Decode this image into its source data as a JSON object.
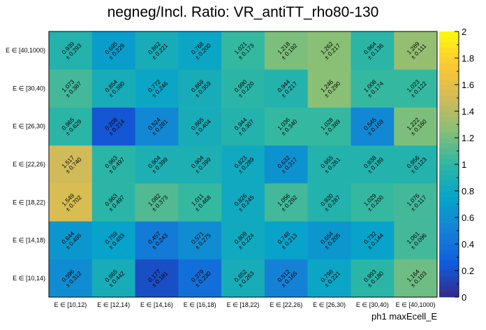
{
  "chart_data": {
    "type": "heatmap",
    "title": "negneg/Incl. Ratio: VR_antiTT_rho80-130",
    "xlabel": "ph1 maxEcell_E",
    "ylabel": "",
    "x_categories": [
      "E ∈ [10,12)",
      "E ∈ [12,14)",
      "E ∈ [14,16)",
      "E ∈ [16,18)",
      "E ∈ [18,22)",
      "E ∈ [22,26)",
      "E ∈ [26,30)",
      "E ∈ [30,40)",
      "E ∈ [40,1000)"
    ],
    "y_categories": [
      "E ∈ [10,14)",
      "E ∈ [14,18)",
      "E ∈ [18,22)",
      "E ∈ [22,26)",
      "E ∈ [26,30)",
      "E ∈ [30,40)",
      "E ∈ [40,1000)"
    ],
    "values": [
      [
        0.596,
        0.865,
        0.177,
        0.379,
        0.852,
        0.512,
        0.798,
        0.993,
        1.164
      ],
      [
        0.644,
        0.759,
        0.457,
        0.571,
        0.809,
        0.748,
        0.654,
        0.732,
        1.061
      ],
      [
        1.549,
        0.963,
        1.082,
        1.011,
        0.826,
        1.056,
        0.92,
        1.029,
        1.076
      ],
      [
        1.517,
        0.963,
        0.904,
        0.904,
        0.823,
        0.632,
        0.955,
        0.938,
        0.956
      ],
      [
        0.965,
        0.208,
        0.524,
        0.865,
        0.944,
        1.036,
        1.028,
        0.545,
        1.222
      ],
      [
        1.073,
        0.854,
        0.772,
        0.869,
        0.99,
        0.944,
        1.246,
        1.008,
        1.023
      ],
      [
        0.939,
        0.695,
        0.862,
        0.768,
        1.021,
        1.218,
        1.262,
        0.964,
        1.289
      ]
    ],
    "errors": [
      [
        0.312,
        0.442,
        0.181,
        0.23,
        0.263,
        0.165,
        0.221,
        0.18,
        0.103
      ],
      [
        0.495,
        0.483,
        0.243,
        0.275,
        0.224,
        0.213,
        0.205,
        0.144,
        0.096
      ],
      [
        0.702,
        0.497,
        0.373,
        0.468,
        0.245,
        0.292,
        0.287,
        0.2,
        0.117
      ],
      [
        0.74,
        0.497,
        0.399,
        0.399,
        0.289,
        0.317,
        0.261,
        0.189,
        0.123
      ],
      [
        0.629,
        0.214,
        0.281,
        0.404,
        0.307,
        0.34,
        0.389,
        0.169,
        0.16
      ],
      [
        0.387,
        0.38,
        0.246,
        0.359,
        0.22,
        0.217,
        0.29,
        0.174,
        0.122
      ],
      [
        0.293,
        0.229,
        0.221,
        0.2,
        0.173,
        0.192,
        0.217,
        0.136,
        0.111
      ]
    ],
    "zlim": [
      0,
      2
    ],
    "z_ticks": [
      "0",
      "0.2",
      "0.4",
      "0.6",
      "0.8",
      "1",
      "1.2",
      "1.4",
      "1.6",
      "1.8",
      "2"
    ],
    "colormap": [
      "#352a87",
      "#0f5cdd",
      "#1481d6",
      "#06a4ca",
      "#2eb7a4",
      "#87bf77",
      "#d1bb59",
      "#fec832",
      "#f9fb0e"
    ],
    "error_prefix": "± "
  }
}
